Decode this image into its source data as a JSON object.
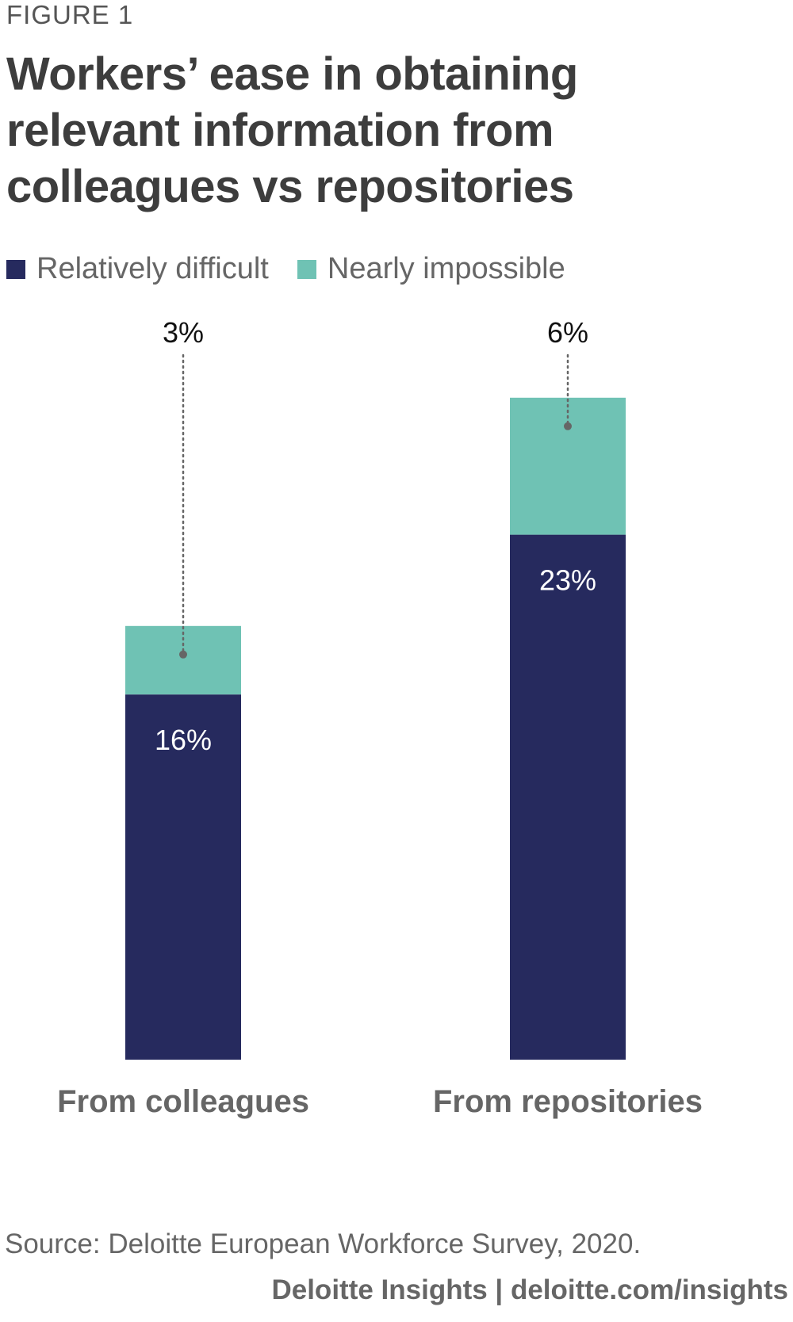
{
  "figure_label": "FIGURE 1",
  "footer": {
    "source": "Source: Deloitte European Workforce Survey, 2020.",
    "brand": "Deloitte Insights | deloitte.com/insights"
  },
  "colors": {
    "relatively_difficult": "#262a5e",
    "nearly_impossible": "#6fc2b4",
    "leader_line": "#666666"
  },
  "chart_data": {
    "type": "bar",
    "stacked": true,
    "title": "Workers’ ease in obtaining relevant information from colleagues vs repositories",
    "categories": [
      "From colleagues",
      "From repositories"
    ],
    "series": [
      {
        "name": "Relatively difficult",
        "values": [
          16,
          23
        ],
        "labels": [
          "16%",
          "23%"
        ]
      },
      {
        "name": "Nearly impossible",
        "values": [
          3,
          6
        ],
        "labels": [
          "3%",
          "6%"
        ]
      }
    ],
    "unit": "%",
    "ylim": [
      0,
      29
    ],
    "grid": false,
    "legend_position": "top-left"
  }
}
